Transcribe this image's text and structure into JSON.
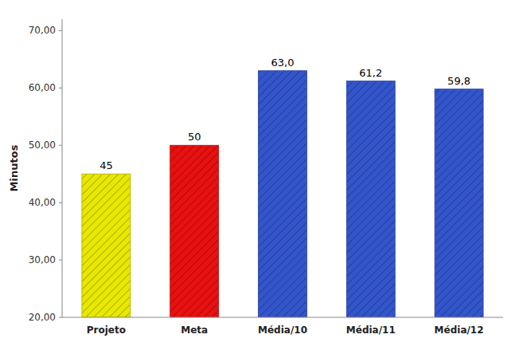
{
  "chart_data": {
    "type": "bar",
    "categories": [
      "Projeto",
      "Meta",
      "Média/10",
      "Média/11",
      "Média/12"
    ],
    "values": [
      45,
      50,
      63.0,
      61.2,
      59.8
    ],
    "value_labels": [
      "45",
      "50",
      "63,0",
      "61,2",
      "59,8"
    ],
    "colors": [
      "#e8e800",
      "#e81010",
      "#3355cc",
      "#3355cc",
      "#3355cc"
    ],
    "y_label": "Minutos",
    "ylim": [
      20,
      72
    ],
    "yticks": [
      {
        "value": 20,
        "label": "20,00"
      },
      {
        "value": 30,
        "label": "30,00"
      },
      {
        "value": 40,
        "label": "40,00"
      },
      {
        "value": 50,
        "label": "50,00"
      },
      {
        "value": 60,
        "label": "60,00"
      },
      {
        "value": 70,
        "label": "70,00"
      }
    ],
    "grid": false,
    "data_labels": true
  }
}
